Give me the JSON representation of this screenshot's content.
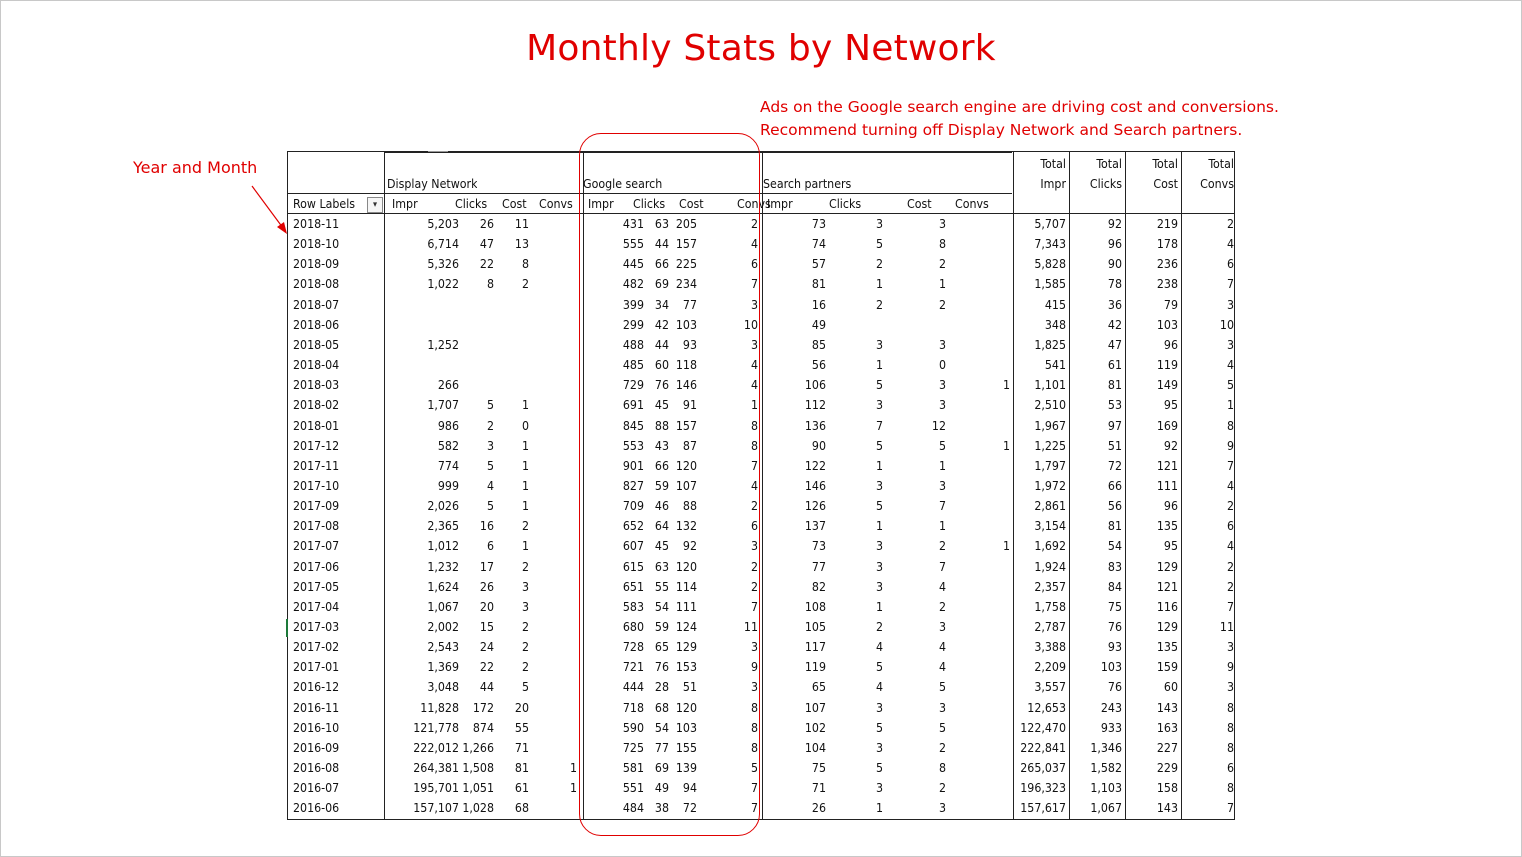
{
  "title": "Monthly Stats by Network",
  "annotation": {
    "line1": "Ads on the Google search engine are driving cost and conversions.",
    "line2": "Recommend turning off Display Network and Search partners."
  },
  "side_label": "Year and Month",
  "colors": {
    "accent": "#e00000",
    "grid": "#222222"
  },
  "pivot": {
    "row_header": "Row Labels",
    "filter_icon": "sort-filter-icon",
    "groups": [
      "Display Network",
      "Google search",
      "Search partners"
    ],
    "sub_headers": [
      "Impr",
      "Clicks",
      "Cost",
      "Convs"
    ],
    "total_headers": [
      {
        "top": "Total",
        "bottom": "Impr"
      },
      {
        "top": "Total",
        "bottom": "Clicks"
      },
      {
        "top": "Total",
        "bottom": "Cost"
      },
      {
        "top": "Total",
        "bottom": "Convs"
      }
    ],
    "rows": [
      [
        "2018-11",
        "5,203",
        "26",
        "11",
        "",
        "431",
        "63",
        "205",
        "2",
        "73",
        "3",
        "3",
        "",
        "5,707",
        "92",
        "219",
        "2"
      ],
      [
        "2018-10",
        "6,714",
        "47",
        "13",
        "",
        "555",
        "44",
        "157",
        "4",
        "74",
        "5",
        "8",
        "",
        "7,343",
        "96",
        "178",
        "4"
      ],
      [
        "2018-09",
        "5,326",
        "22",
        "8",
        "",
        "445",
        "66",
        "225",
        "6",
        "57",
        "2",
        "2",
        "",
        "5,828",
        "90",
        "236",
        "6"
      ],
      [
        "2018-08",
        "1,022",
        "8",
        "2",
        "",
        "482",
        "69",
        "234",
        "7",
        "81",
        "1",
        "1",
        "",
        "1,585",
        "78",
        "238",
        "7"
      ],
      [
        "2018-07",
        "",
        "",
        "",
        "",
        "399",
        "34",
        "77",
        "3",
        "16",
        "2",
        "2",
        "",
        "415",
        "36",
        "79",
        "3"
      ],
      [
        "2018-06",
        "",
        "",
        "",
        "",
        "299",
        "42",
        "103",
        "10",
        "49",
        "",
        "",
        "",
        "348",
        "42",
        "103",
        "10"
      ],
      [
        "2018-05",
        "1,252",
        "",
        "",
        "",
        "488",
        "44",
        "93",
        "3",
        "85",
        "3",
        "3",
        "",
        "1,825",
        "47",
        "96",
        "3"
      ],
      [
        "2018-04",
        "",
        "",
        "",
        "",
        "485",
        "60",
        "118",
        "4",
        "56",
        "1",
        "0",
        "",
        "541",
        "61",
        "119",
        "4"
      ],
      [
        "2018-03",
        "266",
        "",
        "",
        "",
        "729",
        "76",
        "146",
        "4",
        "106",
        "5",
        "3",
        "1",
        "1,101",
        "81",
        "149",
        "5"
      ],
      [
        "2018-02",
        "1,707",
        "5",
        "1",
        "",
        "691",
        "45",
        "91",
        "1",
        "112",
        "3",
        "3",
        "",
        "2,510",
        "53",
        "95",
        "1"
      ],
      [
        "2018-01",
        "986",
        "2",
        "0",
        "",
        "845",
        "88",
        "157",
        "8",
        "136",
        "7",
        "12",
        "",
        "1,967",
        "97",
        "169",
        "8"
      ],
      [
        "2017-12",
        "582",
        "3",
        "1",
        "",
        "553",
        "43",
        "87",
        "8",
        "90",
        "5",
        "5",
        "1",
        "1,225",
        "51",
        "92",
        "9"
      ],
      [
        "2017-11",
        "774",
        "5",
        "1",
        "",
        "901",
        "66",
        "120",
        "7",
        "122",
        "1",
        "1",
        "",
        "1,797",
        "72",
        "121",
        "7"
      ],
      [
        "2017-10",
        "999",
        "4",
        "1",
        "",
        "827",
        "59",
        "107",
        "4",
        "146",
        "3",
        "3",
        "",
        "1,972",
        "66",
        "111",
        "4"
      ],
      [
        "2017-09",
        "2,026",
        "5",
        "1",
        "",
        "709",
        "46",
        "88",
        "2",
        "126",
        "5",
        "7",
        "",
        "2,861",
        "56",
        "96",
        "2"
      ],
      [
        "2017-08",
        "2,365",
        "16",
        "2",
        "",
        "652",
        "64",
        "132",
        "6",
        "137",
        "1",
        "1",
        "",
        "3,154",
        "81",
        "135",
        "6"
      ],
      [
        "2017-07",
        "1,012",
        "6",
        "1",
        "",
        "607",
        "45",
        "92",
        "3",
        "73",
        "3",
        "2",
        "1",
        "1,692",
        "54",
        "95",
        "4"
      ],
      [
        "2017-06",
        "1,232",
        "17",
        "2",
        "",
        "615",
        "63",
        "120",
        "2",
        "77",
        "3",
        "7",
        "",
        "1,924",
        "83",
        "129",
        "2"
      ],
      [
        "2017-05",
        "1,624",
        "26",
        "3",
        "",
        "651",
        "55",
        "114",
        "2",
        "82",
        "3",
        "4",
        "",
        "2,357",
        "84",
        "121",
        "2"
      ],
      [
        "2017-04",
        "1,067",
        "20",
        "3",
        "",
        "583",
        "54",
        "111",
        "7",
        "108",
        "1",
        "2",
        "",
        "1,758",
        "75",
        "116",
        "7"
      ],
      [
        "2017-03",
        "2,002",
        "15",
        "2",
        "",
        "680",
        "59",
        "124",
        "11",
        "105",
        "2",
        "3",
        "",
        "2,787",
        "76",
        "129",
        "11"
      ],
      [
        "2017-02",
        "2,543",
        "24",
        "2",
        "",
        "728",
        "65",
        "129",
        "3",
        "117",
        "4",
        "4",
        "",
        "3,388",
        "93",
        "135",
        "3"
      ],
      [
        "2017-01",
        "1,369",
        "22",
        "2",
        "",
        "721",
        "76",
        "153",
        "9",
        "119",
        "5",
        "4",
        "",
        "2,209",
        "103",
        "159",
        "9"
      ],
      [
        "2016-12",
        "3,048",
        "44",
        "5",
        "",
        "444",
        "28",
        "51",
        "3",
        "65",
        "4",
        "5",
        "",
        "3,557",
        "76",
        "60",
        "3"
      ],
      [
        "2016-11",
        "11,828",
        "172",
        "20",
        "",
        "718",
        "68",
        "120",
        "8",
        "107",
        "3",
        "3",
        "",
        "12,653",
        "243",
        "143",
        "8"
      ],
      [
        "2016-10",
        "121,778",
        "874",
        "55",
        "",
        "590",
        "54",
        "103",
        "8",
        "102",
        "5",
        "5",
        "",
        "122,470",
        "933",
        "163",
        "8"
      ],
      [
        "2016-09",
        "222,012",
        "1,266",
        "71",
        "",
        "725",
        "77",
        "155",
        "8",
        "104",
        "3",
        "2",
        "",
        "222,841",
        "1,346",
        "227",
        "8"
      ],
      [
        "2016-08",
        "264,381",
        "1,508",
        "81",
        "1",
        "581",
        "69",
        "139",
        "5",
        "75",
        "5",
        "8",
        "",
        "265,037",
        "1,582",
        "229",
        "6"
      ],
      [
        "2016-07",
        "195,701",
        "1,051",
        "61",
        "1",
        "551",
        "49",
        "94",
        "7",
        "71",
        "3",
        "2",
        "",
        "196,323",
        "1,103",
        "158",
        "8"
      ],
      [
        "2016-06",
        "157,107",
        "1,028",
        "68",
        "",
        "484",
        "38",
        "72",
        "7",
        "26",
        "1",
        "3",
        "",
        "157,617",
        "1,067",
        "143",
        "7"
      ]
    ]
  }
}
